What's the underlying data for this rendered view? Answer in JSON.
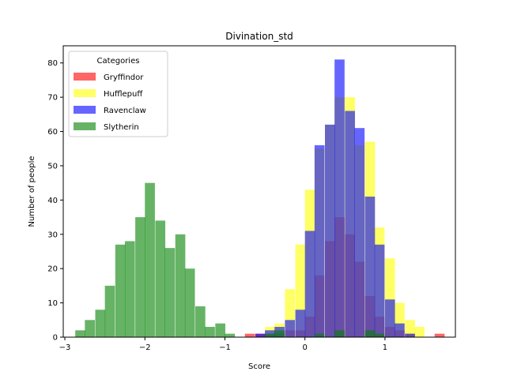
{
  "chart_data": {
    "type": "bar",
    "title": "Divination_std",
    "xlabel": "Score",
    "ylabel": "Number of people",
    "xlim": [
      -3.02,
      1.88
    ],
    "ylim": [
      0,
      85
    ],
    "xticks": [
      -3,
      -2,
      -1,
      0,
      1
    ],
    "yticks": [
      0,
      10,
      20,
      30,
      40,
      50,
      60,
      70,
      80
    ],
    "legend_title": "Categories",
    "legend_position": "upper left",
    "bin_width": 0.125,
    "series": [
      {
        "name": "Gryffindor",
        "color": "#ff0000",
        "bins": [
          [
            -0.75,
            1
          ],
          [
            -0.62,
            1
          ],
          [
            -0.5,
            1
          ],
          [
            -0.38,
            1
          ],
          [
            -0.25,
            2
          ],
          [
            -0.12,
            2
          ],
          [
            0.0,
            6
          ],
          [
            0.12,
            18
          ],
          [
            0.25,
            28
          ],
          [
            0.37,
            35
          ],
          [
            0.5,
            30
          ],
          [
            0.62,
            22
          ],
          [
            0.75,
            12
          ],
          [
            0.87,
            6
          ],
          [
            1.0,
            3
          ],
          [
            1.12,
            2
          ],
          [
            1.25,
            1
          ],
          [
            1.62,
            1
          ]
        ]
      },
      {
        "name": "Hufflepuff",
        "color": "#ffff00",
        "bins": [
          [
            -0.5,
            3
          ],
          [
            -0.38,
            4
          ],
          [
            -0.25,
            14
          ],
          [
            -0.12,
            27
          ],
          [
            0.0,
            43
          ],
          [
            0.12,
            55
          ],
          [
            0.25,
            62
          ],
          [
            0.37,
            70
          ],
          [
            0.5,
            70
          ],
          [
            0.62,
            56
          ],
          [
            0.75,
            57
          ],
          [
            0.87,
            32
          ],
          [
            1.0,
            23
          ],
          [
            1.12,
            10
          ],
          [
            1.25,
            5
          ],
          [
            1.37,
            3
          ]
        ]
      },
      {
        "name": "Ravenclaw",
        "color": "#0000ff",
        "bins": [
          [
            -0.62,
            1
          ],
          [
            -0.5,
            2
          ],
          [
            -0.38,
            3
          ],
          [
            -0.25,
            5
          ],
          [
            -0.12,
            8
          ],
          [
            0.0,
            31
          ],
          [
            0.12,
            56
          ],
          [
            0.25,
            62
          ],
          [
            0.37,
            81
          ],
          [
            0.5,
            66
          ],
          [
            0.62,
            61
          ],
          [
            0.75,
            41
          ],
          [
            0.87,
            27
          ],
          [
            1.0,
            11
          ],
          [
            1.12,
            4
          ],
          [
            1.25,
            1
          ]
        ]
      },
      {
        "name": "Slytherin",
        "color": "#008000",
        "bins": [
          [
            -2.87,
            2
          ],
          [
            -2.75,
            5
          ],
          [
            -2.62,
            8
          ],
          [
            -2.5,
            15
          ],
          [
            -2.37,
            27
          ],
          [
            -2.25,
            28
          ],
          [
            -2.12,
            35
          ],
          [
            -2.0,
            45
          ],
          [
            -1.87,
            34
          ],
          [
            -1.75,
            26
          ],
          [
            -1.62,
            30
          ],
          [
            -1.5,
            20
          ],
          [
            -1.37,
            9
          ],
          [
            -1.25,
            3
          ],
          [
            -1.12,
            4
          ],
          [
            -1.0,
            1
          ],
          [
            -0.5,
            1
          ],
          [
            -0.38,
            2
          ],
          [
            0.12,
            1
          ],
          [
            0.37,
            2
          ],
          [
            0.75,
            2
          ],
          [
            0.87,
            1
          ]
        ]
      }
    ]
  }
}
